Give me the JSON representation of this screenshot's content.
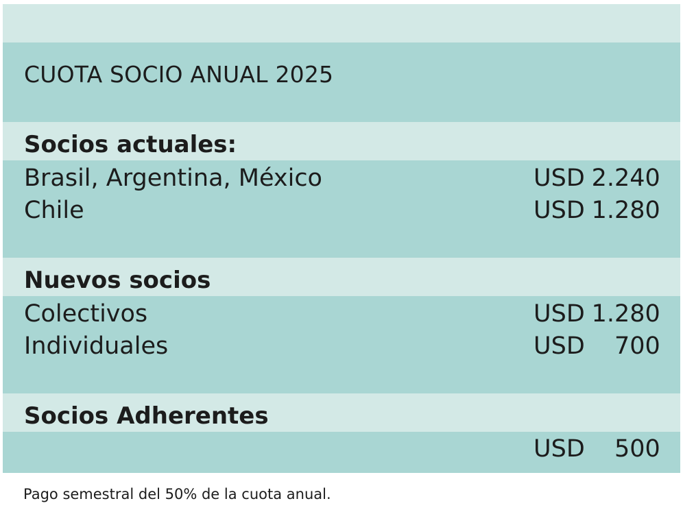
{
  "title": "CUOTA SOCIO ANUAL 2025",
  "sections": [
    {
      "heading": "Socios actuales:",
      "rows": [
        {
          "label": "Brasil, Argentina, México",
          "currency": "USD",
          "amount": "2.240"
        },
        {
          "label": "Chile",
          "currency": "USD",
          "amount": "1.280"
        }
      ]
    },
    {
      "heading": "Nuevos socios",
      "rows": [
        {
          "label": "Colectivos",
          "currency": "USD",
          "amount": "1.280"
        },
        {
          "label": "Individuales",
          "currency": "USD",
          "amount": "700"
        }
      ]
    },
    {
      "heading": "Socios Adherentes",
      "rows": [
        {
          "label": "",
          "currency": "USD",
          "amount": "500"
        }
      ]
    }
  ],
  "footnote": "Pago semestral del 50% de la cuota anual.",
  "colors": {
    "light_band": "#d3e9e6",
    "dark_band": "#a9d6d3",
    "text": "#1c1c1c"
  }
}
